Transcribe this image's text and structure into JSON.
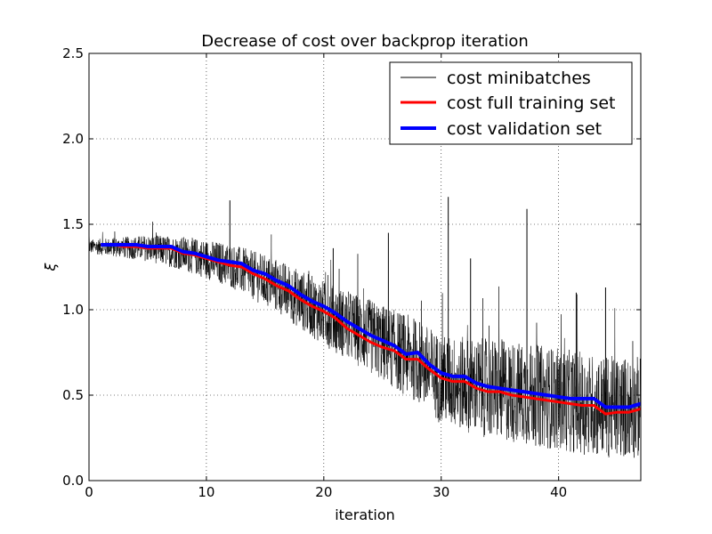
{
  "chart_data": {
    "type": "line",
    "title": "Decrease of cost over backprop iteration",
    "xlabel": "iteration",
    "ylabel": "ξ",
    "xlim": [
      0,
      47
    ],
    "ylim": [
      0,
      2.5
    ],
    "xticks": [
      "0",
      "10",
      "20",
      "30",
      "40"
    ],
    "xtick_values": [
      0,
      10,
      20,
      30,
      40
    ],
    "yticks": [
      "0.0",
      "0.5",
      "1.0",
      "1.5",
      "2.0",
      "2.5"
    ],
    "ytick_values": [
      0,
      0.5,
      1.0,
      1.5,
      2.0,
      2.5
    ],
    "grid": true,
    "legend_position": "top-right",
    "series": [
      {
        "name": "cost minibatches",
        "color": "#000000",
        "style": "thin-noisy",
        "trend_x": [
          0,
          5,
          8,
          12,
          16,
          20,
          24,
          28,
          30,
          33,
          38,
          44,
          47
        ],
        "trend_y": [
          1.37,
          1.36,
          1.33,
          1.26,
          1.14,
          0.98,
          0.84,
          0.7,
          0.59,
          0.55,
          0.5,
          0.43,
          0.43
        ],
        "spread_start": 0.04,
        "spread_end": 0.3,
        "spikes": [
          {
            "x": 12.0,
            "y": 1.64
          },
          {
            "x": 30.6,
            "y": 1.66
          },
          {
            "x": 37.3,
            "y": 1.59
          },
          {
            "x": 25.5,
            "y": 1.45
          },
          {
            "x": 32.5,
            "y": 1.3
          },
          {
            "x": 44.0,
            "y": 1.13
          },
          {
            "x": 20.8,
            "y": 1.36
          },
          {
            "x": 41.5,
            "y": 1.1
          }
        ]
      },
      {
        "name": "cost full training set",
        "color": "#ff0000",
        "x": [
          1,
          2,
          3,
          4,
          5,
          6,
          7,
          8,
          9,
          10,
          11,
          12,
          13,
          14,
          15,
          16,
          17,
          18,
          19,
          20,
          21,
          22,
          23,
          24,
          25,
          26,
          27,
          28,
          29,
          30,
          31,
          32,
          33,
          34,
          35,
          36,
          37,
          38,
          39,
          40,
          41,
          42,
          43,
          44,
          45,
          46,
          47
        ],
        "y": [
          1.38,
          1.38,
          1.37,
          1.37,
          1.36,
          1.36,
          1.36,
          1.33,
          1.32,
          1.3,
          1.28,
          1.26,
          1.25,
          1.21,
          1.18,
          1.14,
          1.11,
          1.06,
          1.02,
          0.99,
          0.95,
          0.89,
          0.85,
          0.81,
          0.78,
          0.76,
          0.71,
          0.71,
          0.65,
          0.6,
          0.58,
          0.58,
          0.54,
          0.52,
          0.52,
          0.5,
          0.49,
          0.48,
          0.47,
          0.46,
          0.45,
          0.44,
          0.44,
          0.39,
          0.4,
          0.4,
          0.42
        ]
      },
      {
        "name": "cost validation set",
        "color": "#0000ff",
        "x": [
          1,
          2,
          3,
          4,
          5,
          6,
          7,
          8,
          9,
          10,
          11,
          12,
          13,
          14,
          15,
          16,
          17,
          18,
          19,
          20,
          21,
          22,
          23,
          24,
          25,
          26,
          27,
          28,
          29,
          30,
          31,
          32,
          33,
          34,
          35,
          36,
          37,
          38,
          39,
          40,
          41,
          42,
          43,
          44,
          45,
          46,
          47
        ],
        "y": [
          1.38,
          1.38,
          1.38,
          1.38,
          1.37,
          1.37,
          1.37,
          1.34,
          1.33,
          1.31,
          1.29,
          1.28,
          1.27,
          1.23,
          1.21,
          1.17,
          1.14,
          1.09,
          1.05,
          1.02,
          0.98,
          0.93,
          0.89,
          0.85,
          0.82,
          0.79,
          0.74,
          0.75,
          0.68,
          0.63,
          0.61,
          0.61,
          0.57,
          0.55,
          0.54,
          0.53,
          0.52,
          0.51,
          0.5,
          0.49,
          0.48,
          0.48,
          0.48,
          0.43,
          0.43,
          0.43,
          0.45
        ]
      }
    ]
  }
}
